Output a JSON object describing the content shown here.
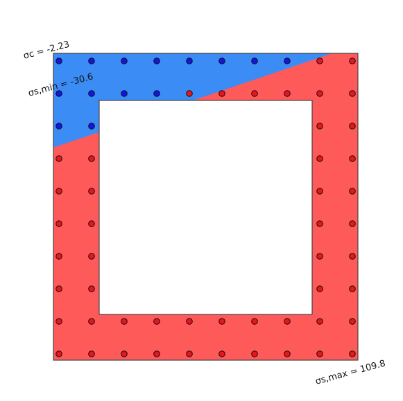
{
  "colors": {
    "tension": "#ff5a5a",
    "compression": "#3b8cf5",
    "outline": "#444444",
    "bar_tension": "#e8141e",
    "bar_compression": "#1414e6",
    "bar_stroke": "#111111",
    "void": "#ffffff"
  },
  "annotations": {
    "sigma_c": "σc = -2.23",
    "sigma_s_min": "σs,min = -30.6",
    "sigma_s_max": "σs,max = 109.8"
  },
  "bars": {
    "outer_row_count": 10,
    "inner_row_count": 10,
    "column_bar_count": 8,
    "compression_top_outer": 8,
    "compression_top_inner": 4,
    "compression_left_outer": 3,
    "compression_left_inner": 3
  }
}
